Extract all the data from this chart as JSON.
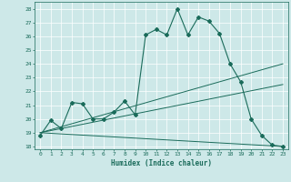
{
  "xlabel": "Humidex (Indice chaleur)",
  "xlim": [
    -0.5,
    23.5
  ],
  "ylim": [
    17.8,
    28.5
  ],
  "yticks": [
    18,
    19,
    20,
    21,
    22,
    23,
    24,
    25,
    26,
    27,
    28
  ],
  "xticks": [
    0,
    1,
    2,
    3,
    4,
    5,
    6,
    7,
    8,
    9,
    10,
    11,
    12,
    13,
    14,
    15,
    16,
    17,
    18,
    19,
    20,
    21,
    22,
    23
  ],
  "bg_color": "#cde8e8",
  "line_color": "#1a6b5a",
  "grid_color": "#ffffff",
  "lines": [
    {
      "x": [
        0,
        1,
        2,
        3,
        4,
        5,
        6,
        7,
        8,
        9,
        10,
        11,
        12,
        13,
        14,
        15,
        16,
        17,
        18,
        19,
        20,
        21,
        22,
        23
      ],
      "y": [
        18.8,
        19.9,
        19.3,
        21.2,
        21.1,
        20.0,
        20.0,
        20.5,
        21.3,
        20.3,
        26.1,
        26.5,
        26.1,
        28.0,
        26.1,
        27.4,
        27.1,
        26.2,
        24.0,
        22.7,
        20.0,
        18.8,
        18.1,
        18.0
      ],
      "marker": true
    },
    {
      "x": [
        0,
        23
      ],
      "y": [
        19.0,
        24.0
      ],
      "marker": false
    },
    {
      "x": [
        0,
        23
      ],
      "y": [
        19.0,
        18.0
      ],
      "marker": false
    },
    {
      "x": [
        0,
        23
      ],
      "y": [
        19.0,
        22.5
      ],
      "marker": false
    }
  ]
}
